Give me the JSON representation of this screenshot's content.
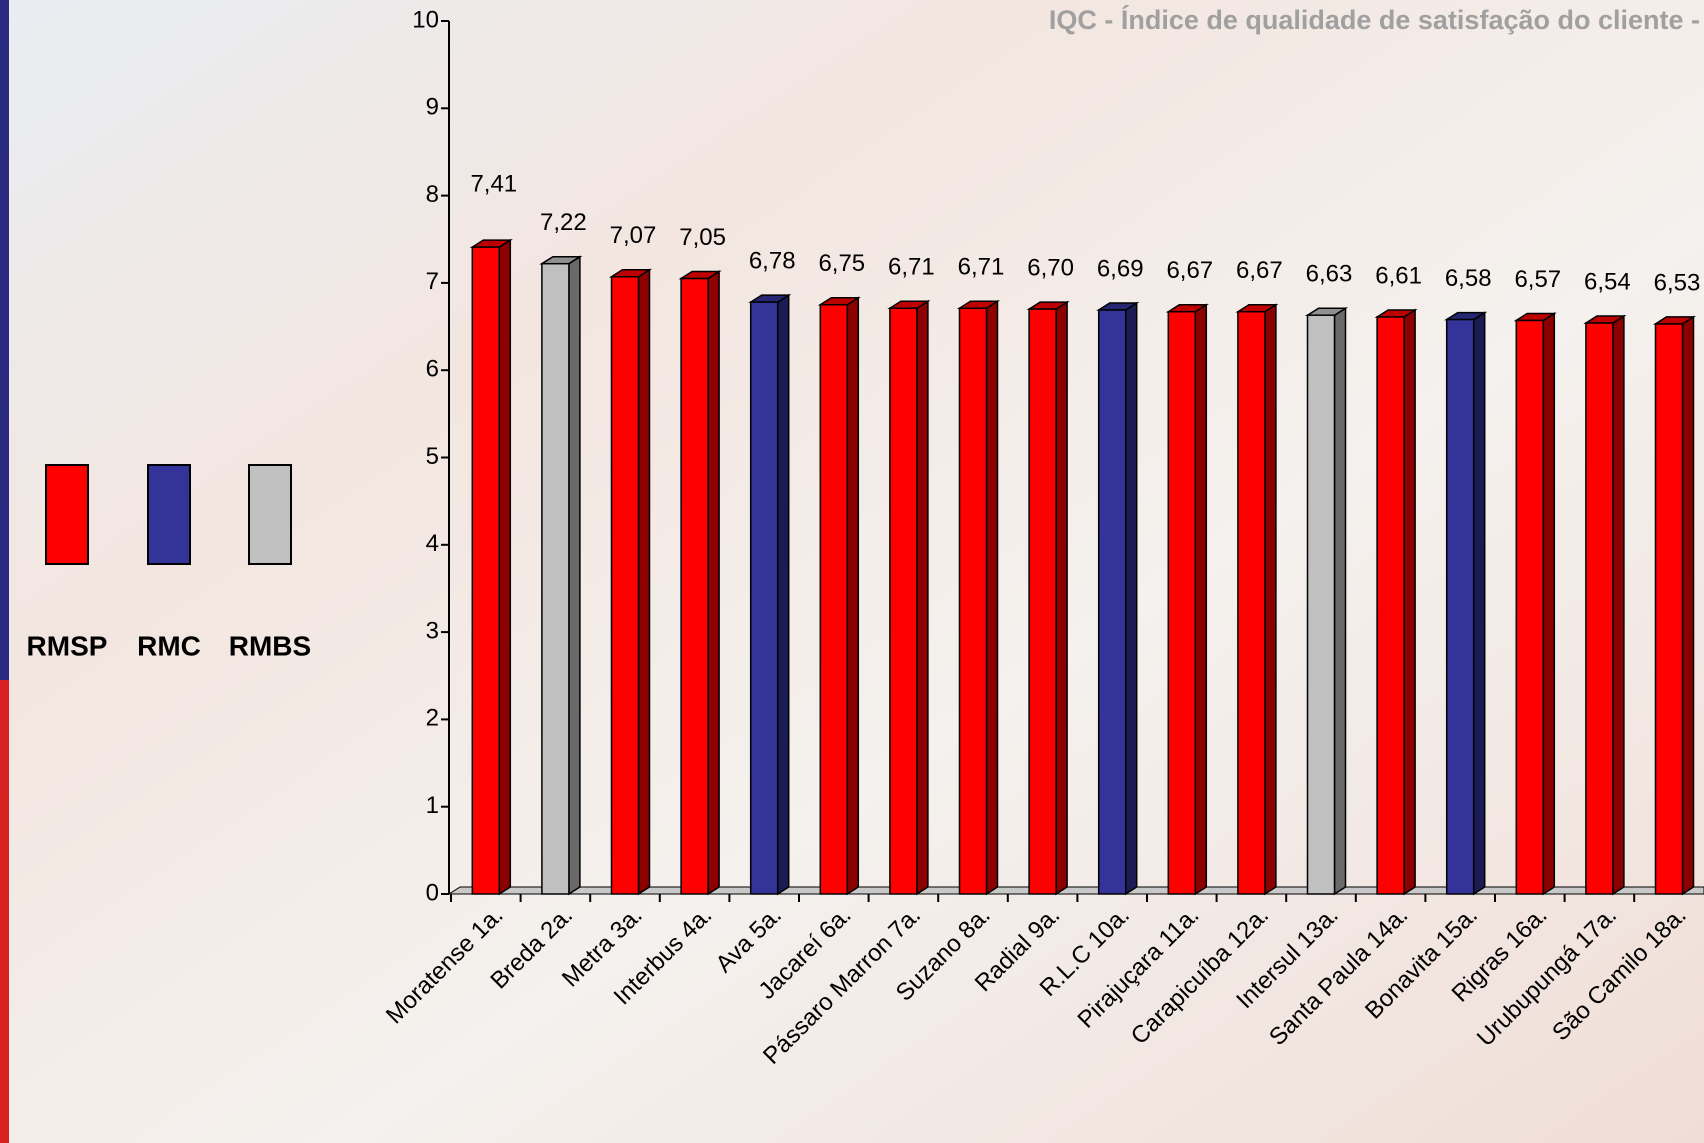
{
  "chart_data": {
    "type": "bar3d",
    "title": "IQC - Índice de qualidade de satisfação do cliente -",
    "categories": [
      "Moratense 1a.",
      "Breda 2a.",
      "Metra 3a.",
      "Interbus 4a.",
      "Ava 5a.",
      "Jacareí 6a.",
      "Pássaro Marron 7a.",
      "Suzano 8a.",
      "Radial 9a.",
      "R.L.C 10a.",
      "Pirajuçara 11a.",
      "Carapicuíba 12a.",
      "Intersul 13a.",
      "Santa Paula 14a.",
      "Bonavita 15a.",
      "Rigras 16a.",
      "Urubupungá 17a.",
      "São Camilo 18a."
    ],
    "values": [
      7.41,
      7.22,
      7.07,
      7.05,
      6.78,
      6.75,
      6.71,
      6.71,
      6.7,
      6.69,
      6.67,
      6.67,
      6.63,
      6.61,
      6.58,
      6.57,
      6.54,
      6.53
    ],
    "value_labels": [
      "7,41",
      "7,22",
      "7,07",
      "7,05",
      "6,78",
      "6,75",
      "6,71",
      "6,71",
      "6,70",
      "6,69",
      "6,67",
      "6,67",
      "6,63",
      "6,61",
      "6,58",
      "6,57",
      "6,54",
      "6,53"
    ],
    "colors": [
      "#ff0000",
      "#c0c0c0",
      "#ff0000",
      "#ff0000",
      "#333399",
      "#ff0000",
      "#ff0000",
      "#ff0000",
      "#ff0000",
      "#333399",
      "#ff0000",
      "#ff0000",
      "#c0c0c0",
      "#ff0000",
      "#333399",
      "#ff0000",
      "#ff0000",
      "#ff0000"
    ],
    "legend": [
      {
        "name": "RMSP",
        "color": "#ff0000"
      },
      {
        "name": "RMC",
        "color": "#333399"
      },
      {
        "name": "RMBS",
        "color": "#c0c0c0"
      }
    ],
    "ylim": [
      0,
      10
    ],
    "yticks": [
      0,
      1,
      2,
      3,
      4,
      5,
      6,
      7,
      8,
      9,
      10
    ]
  }
}
